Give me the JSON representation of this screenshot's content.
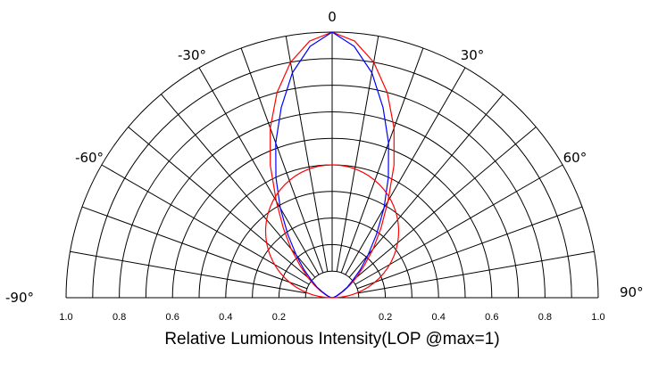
{
  "chart_data": {
    "type": "polar",
    "title": "",
    "xlabel": "Relative Lumionous Intensity(LOP @max=1)",
    "angle_range": [
      -90,
      90
    ],
    "radial_range": [
      0,
      1
    ],
    "grid": true,
    "spoke_step_deg": 10,
    "ring_values": [
      0.1,
      0.2,
      0.3,
      0.4,
      0.5,
      0.6,
      0.7,
      0.8,
      0.9,
      1.0
    ],
    "angle_tick_labels": [
      {
        "angle": -90,
        "label": "-90°"
      },
      {
        "angle": -60,
        "label": "-60°"
      },
      {
        "angle": -30,
        "label": "-30°"
      },
      {
        "angle": 0,
        "label": "0"
      },
      {
        "angle": 30,
        "label": "30°"
      },
      {
        "angle": 60,
        "label": "60°"
      },
      {
        "angle": 90,
        "label": "90°"
      }
    ],
    "radius_tick_labels": [
      "1.0",
      "0.8",
      "0.6",
      "0.4",
      "0.2",
      "0.2",
      "0.4",
      "0.6",
      "0.8",
      "1.0"
    ],
    "series": [
      {
        "color": "#ff0000",
        "style": "radiation-pattern",
        "angles": [
          0,
          5,
          10,
          15,
          20,
          25,
          30,
          35,
          40,
          45,
          50,
          55,
          60,
          70,
          80,
          90
        ],
        "values": [
          1.0,
          0.97,
          0.9,
          0.8,
          0.68,
          0.55,
          0.42,
          0.32,
          0.24,
          0.17,
          0.12,
          0.08,
          0.05,
          0.02,
          0.005,
          0.0
        ]
      },
      {
        "color": "#0000ff",
        "style": "radiation-pattern",
        "angles": [
          0,
          5,
          10,
          15,
          20,
          25,
          30,
          35,
          40,
          45,
          50,
          55,
          60,
          70,
          80,
          90
        ],
        "values": [
          1.0,
          0.95,
          0.86,
          0.74,
          0.62,
          0.5,
          0.39,
          0.29,
          0.21,
          0.15,
          0.1,
          0.07,
          0.04,
          0.015,
          0.004,
          0.0
        ]
      },
      {
        "color": "#ff0000",
        "style": "reference-circle",
        "diameter": 0.5
      }
    ]
  }
}
